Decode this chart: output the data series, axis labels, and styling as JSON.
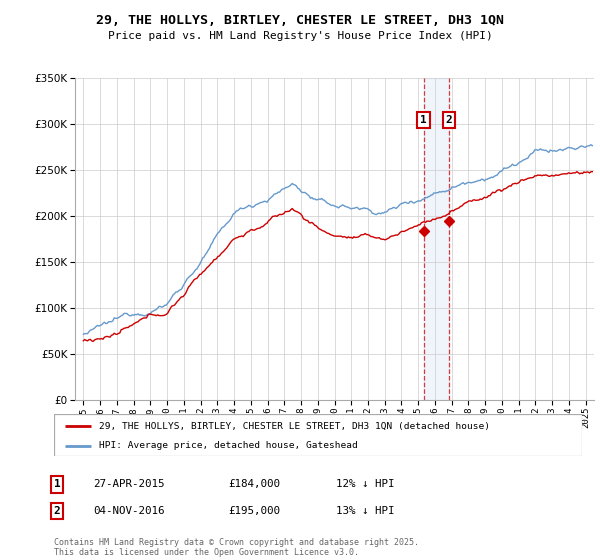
{
  "title": "29, THE HOLLYS, BIRTLEY, CHESTER LE STREET, DH3 1QN",
  "subtitle": "Price paid vs. HM Land Registry's House Price Index (HPI)",
  "legend_line1": "29, THE HOLLYS, BIRTLEY, CHESTER LE STREET, DH3 1QN (detached house)",
  "legend_line2": "HPI: Average price, detached house, Gateshead",
  "marker1_label": "1",
  "marker1_date": "27-APR-2015",
  "marker1_price": "£184,000",
  "marker1_hpi": "12% ↓ HPI",
  "marker1_x": 2015.32,
  "marker1_y": 184000,
  "marker2_label": "2",
  "marker2_date": "04-NOV-2016",
  "marker2_price": "£195,000",
  "marker2_hpi": "13% ↓ HPI",
  "marker2_x": 2016.84,
  "marker2_y": 195000,
  "ylim": [
    0,
    350000
  ],
  "yticks": [
    0,
    50000,
    100000,
    150000,
    200000,
    250000,
    300000,
    350000
  ],
  "xlim": [
    1994.5,
    2025.5
  ],
  "red_color": "#cc0000",
  "blue_color": "#6699cc",
  "shade_color": "#aaccee",
  "vline_color": "#cc0000",
  "grid_color": "#cccccc",
  "footnote": "Contains HM Land Registry data © Crown copyright and database right 2025.\nThis data is licensed under the Open Government Licence v3.0."
}
